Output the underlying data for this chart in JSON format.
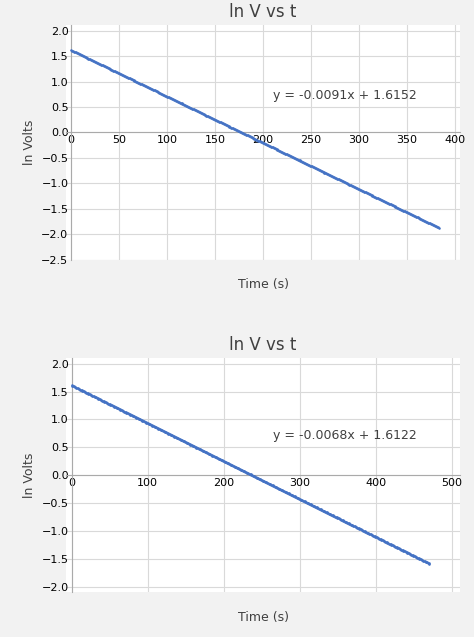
{
  "plot1": {
    "title": "ln V vs t",
    "xlabel": "Time (s)",
    "ylabel": "ln Volts",
    "slope": -0.0091,
    "intercept": 1.6152,
    "x_start": 0,
    "x_end": 383,
    "xlim": [
      -5,
      405
    ],
    "xticks": [
      0,
      50,
      100,
      150,
      200,
      250,
      300,
      350,
      400
    ],
    "ylim": [
      -2.5,
      2.1
    ],
    "yticks": [
      -2.5,
      -2.0,
      -1.5,
      -1.0,
      -0.5,
      0,
      0.5,
      1.0,
      1.5,
      2.0
    ],
    "equation": "y = -0.0091x + 1.6152",
    "eq_x": 210,
    "eq_y": 0.72,
    "dot_color": "#4472C4",
    "dot_size": 3.5
  },
  "plot2": {
    "title": "ln V vs t",
    "xlabel": "Time (s)",
    "ylabel": "ln Volts",
    "slope": -0.0068,
    "intercept": 1.6122,
    "x_start": 0,
    "x_end": 470,
    "xlim": [
      -7,
      510
    ],
    "xticks": [
      0,
      100,
      200,
      300,
      400,
      500
    ],
    "ylim": [
      -2.1,
      2.1
    ],
    "yticks": [
      -2.0,
      -1.5,
      -1.0,
      -0.5,
      0,
      0.5,
      1.0,
      1.5,
      2.0
    ],
    "equation": "y = -0.0068x + 1.6122",
    "eq_x": 265,
    "eq_y": 0.72,
    "dot_color": "#4472C4",
    "dot_size": 3.5
  },
  "bg_color": "#F2F2F2",
  "plot_bg_color": "#FFFFFF",
  "grid_color": "#D9D9D9",
  "title_fontsize": 12,
  "label_fontsize": 9,
  "tick_fontsize": 8,
  "eq_fontsize": 9
}
